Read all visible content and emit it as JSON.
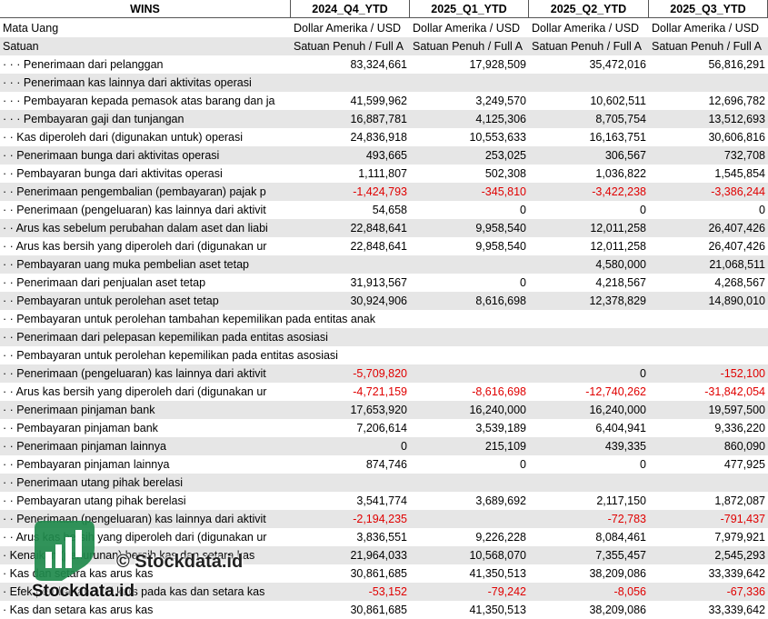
{
  "table": {
    "header": [
      "WINS",
      "2024_Q4_YTD",
      "2025_Q1_YTD",
      "2025_Q2_YTD",
      "2025_Q3_YTD"
    ],
    "rows": [
      {
        "label": "Mata Uang",
        "cells": [
          "Dollar Amerika / USD",
          "Dollar Amerika / USD",
          "Dollar Amerika / USD",
          "Dollar Amerika / USD"
        ]
      },
      {
        "label": "Satuan",
        "cells": [
          "Satuan Penuh / Full A",
          "Satuan Penuh / Full A",
          "Satuan Penuh / Full A",
          "Satuan Penuh / Full A"
        ]
      },
      {
        "label": "· · · Penerimaan dari pelanggan",
        "cells": [
          "83,324,661",
          "17,928,509",
          "35,472,016",
          "56,816,291"
        ]
      },
      {
        "label": "· · · Penerimaan kas lainnya dari aktivitas operasi",
        "cells": [
          null,
          null,
          null,
          null
        ]
      },
      {
        "label": "· · · Pembayaran kepada pemasok atas barang dan ja",
        "cells": [
          "41,599,962",
          "3,249,570",
          "10,602,511",
          "12,696,782"
        ]
      },
      {
        "label": "· · · Pembayaran gaji dan tunjangan",
        "cells": [
          "16,887,781",
          "4,125,306",
          "8,705,754",
          "13,512,693"
        ]
      },
      {
        "label": "· · Kas diperoleh dari (digunakan untuk) operasi",
        "cells": [
          "24,836,918",
          "10,553,633",
          "16,163,751",
          "30,606,816"
        ]
      },
      {
        "label": "· · Penerimaan bunga dari aktivitas operasi",
        "cells": [
          "493,665",
          "253,025",
          "306,567",
          "732,708"
        ]
      },
      {
        "label": "· · Pembayaran bunga dari aktivitas operasi",
        "cells": [
          "1,111,807",
          "502,308",
          "1,036,822",
          "1,545,854"
        ]
      },
      {
        "label": "· · Penerimaan pengembalian (pembayaran) pajak p",
        "cells": [
          "-1,424,793",
          "-345,810",
          "-3,422,238",
          "-3,386,244"
        ]
      },
      {
        "label": "· · Penerimaan (pengeluaran) kas lainnya dari aktivit",
        "cells": [
          "54,658",
          "0",
          "0",
          "0"
        ]
      },
      {
        "label": "· · Arus kas sebelum perubahan dalam aset dan liabi",
        "cells": [
          "22,848,641",
          "9,958,540",
          "12,011,258",
          "26,407,426"
        ]
      },
      {
        "label": "· · Arus kas bersih yang diperoleh dari (digunakan ur",
        "cells": [
          "22,848,641",
          "9,958,540",
          "12,011,258",
          "26,407,426"
        ]
      },
      {
        "label": "· · Pembayaran uang muka pembelian aset tetap",
        "cells": [
          null,
          null,
          "4,580,000",
          "21,068,511"
        ]
      },
      {
        "label": "· · Penerimaan dari penjualan aset tetap",
        "cells": [
          "31,913,567",
          "0",
          "4,218,567",
          "4,268,567"
        ]
      },
      {
        "label": "· · Pembayaran untuk perolehan aset tetap",
        "cells": [
          "30,924,906",
          "8,616,698",
          "12,378,829",
          "14,890,010"
        ]
      },
      {
        "label": "· · Pembayaran untuk perolehan tambahan kepemilikan pada entitas anak",
        "cells": [
          null,
          null,
          null,
          null
        ]
      },
      {
        "label": "· · Penerimaan dari pelepasan kepemilikan pada entitas asosiasi",
        "cells": [
          null,
          null,
          null,
          null
        ]
      },
      {
        "label": "· · Pembayaran untuk perolehan kepemilikan pada entitas asosiasi",
        "cells": [
          null,
          null,
          null,
          null
        ]
      },
      {
        "label": "· · Penerimaan (pengeluaran) kas lainnya dari aktivit",
        "cells": [
          "-5,709,820",
          null,
          "0",
          "-152,100"
        ]
      },
      {
        "label": "· · Arus kas bersih yang diperoleh dari (digunakan ur",
        "cells": [
          "-4,721,159",
          "-8,616,698",
          "-12,740,262",
          "-31,842,054"
        ]
      },
      {
        "label": "· · Penerimaan pinjaman bank",
        "cells": [
          "17,653,920",
          "16,240,000",
          "16,240,000",
          "19,597,500"
        ]
      },
      {
        "label": "· · Pembayaran pinjaman bank",
        "cells": [
          "7,206,614",
          "3,539,189",
          "6,404,941",
          "9,336,220"
        ]
      },
      {
        "label": "· · Penerimaan pinjaman lainnya",
        "cells": [
          "0",
          "215,109",
          "439,335",
          "860,090"
        ]
      },
      {
        "label": "· · Pembayaran pinjaman lainnya",
        "cells": [
          "874,746",
          "0",
          "0",
          "477,925"
        ]
      },
      {
        "label": "· · Penerimaan utang pihak berelasi",
        "cells": [
          null,
          null,
          null,
          null
        ]
      },
      {
        "label": "· · Pembayaran utang pihak berelasi",
        "cells": [
          "3,541,774",
          "3,689,692",
          "2,117,150",
          "1,872,087"
        ]
      },
      {
        "label": "· · Penerimaan (pengeluaran) kas lainnya dari aktivit",
        "cells": [
          "-2,194,235",
          null,
          "-72,783",
          "-791,437"
        ]
      },
      {
        "label": "· · Arus kas bersih yang diperoleh dari (digunakan ur",
        "cells": [
          "3,836,551",
          "9,226,228",
          "8,084,461",
          "7,979,921"
        ]
      },
      {
        "label": "· Kenaikan (penurunan) bersih kas dan setara kas",
        "cells": [
          "21,964,033",
          "10,568,070",
          "7,355,457",
          "2,545,293"
        ]
      },
      {
        "label": "· Kas dan setara kas arus kas",
        "cells": [
          "30,861,685",
          "41,350,513",
          "38,209,086",
          "33,339,642"
        ]
      },
      {
        "label": "· Efek perubahan nilai kurs pada kas dan setara kas",
        "cells": [
          "-53,152",
          "-79,242",
          "-8,056",
          "-67,336"
        ]
      },
      {
        "label": "· Kas dan setara kas arus kas",
        "cells": [
          "30,861,685",
          "41,350,513",
          "38,209,086",
          "33,339,642"
        ]
      }
    ]
  },
  "watermark": {
    "copyright": "© Stockdata.id",
    "brand": "Stockdata.id"
  }
}
